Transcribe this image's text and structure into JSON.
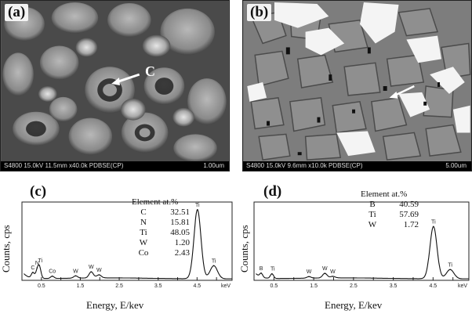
{
  "panels": {
    "a": {
      "label": "(a)",
      "annotation": "C",
      "footer_left": "S4800 15.0kV 11.5mm x40.0k PDBSE(CP)",
      "footer_right": "1.00um"
    },
    "b": {
      "label": "(b)",
      "footer_left": "S4800 15.0kV 9.6mm x10.0k PDBSE(CP)",
      "footer_right": "5.00um"
    },
    "c": {
      "label": "(c)",
      "ylabel": "Counts,  cps",
      "xlabel": "Energy, E/kev",
      "table_header": "Element   at.%",
      "table": [
        {
          "element": "C",
          "value": "32.51"
        },
        {
          "element": "N",
          "value": "15.81"
        },
        {
          "element": "Ti",
          "value": "48.05"
        },
        {
          "element": "W",
          "value": "1.20"
        },
        {
          "element": "Co",
          "value": "2.43"
        }
      ]
    },
    "d": {
      "label": "(d)",
      "ylabel": "Counts,  cps",
      "xlabel": "Energy, E/kev",
      "table_header": "Element   at.%",
      "table": [
        {
          "element": "B",
          "value": "40.59"
        },
        {
          "element": "Ti",
          "value": "57.69"
        },
        {
          "element": "W",
          "value": "1.72"
        }
      ]
    }
  },
  "chart_data": [
    {
      "type": "line",
      "panel": "c",
      "xlabel": "Energy, E/kev",
      "ylabel": "Counts,  cps",
      "x_ticks": [
        "0.5",
        "1",
        "1.5",
        "2",
        "2.5",
        "3",
        "3.5",
        "4",
        "4.5",
        "5"
      ],
      "x_unit": "keV",
      "xlim": [
        0.0,
        5.4
      ],
      "ylim": [
        0,
        100
      ],
      "peaks": [
        {
          "label": "C",
          "x": 0.28,
          "y": 7
        },
        {
          "label": "N",
          "x": 0.39,
          "y": 9
        },
        {
          "label": "Ti",
          "x": 0.45,
          "y": 14
        },
        {
          "label": "Co",
          "x": 0.78,
          "y": 3
        },
        {
          "label": "W",
          "x": 1.38,
          "y": 3
        },
        {
          "label": "W",
          "x": 1.78,
          "y": 8
        },
        {
          "label": "W",
          "x": 1.98,
          "y": 4
        },
        {
          "label": "Ti",
          "x": 4.51,
          "y": 90
        },
        {
          "label": "Ti",
          "x": 4.93,
          "y": 17
        }
      ]
    },
    {
      "type": "line",
      "panel": "d",
      "xlabel": "Energy, E/kev",
      "ylabel": "Counts,  cps",
      "x_ticks": [
        "0.5",
        "1",
        "1.5",
        "2",
        "2.5",
        "3",
        "3.5",
        "4",
        "4.5",
        "5"
      ],
      "x_unit": "keV",
      "xlim": [
        0.0,
        5.4
      ],
      "ylim": [
        0,
        100
      ],
      "peaks": [
        {
          "label": "B",
          "x": 0.18,
          "y": 5
        },
        {
          "label": "Ti",
          "x": 0.45,
          "y": 6
        },
        {
          "label": "W",
          "x": 1.38,
          "y": 2
        },
        {
          "label": "W",
          "x": 1.78,
          "y": 6
        },
        {
          "label": "W",
          "x": 1.98,
          "y": 2
        },
        {
          "label": "Ti",
          "x": 4.51,
          "y": 68
        },
        {
          "label": "Ti",
          "x": 4.93,
          "y": 12
        }
      ]
    }
  ]
}
